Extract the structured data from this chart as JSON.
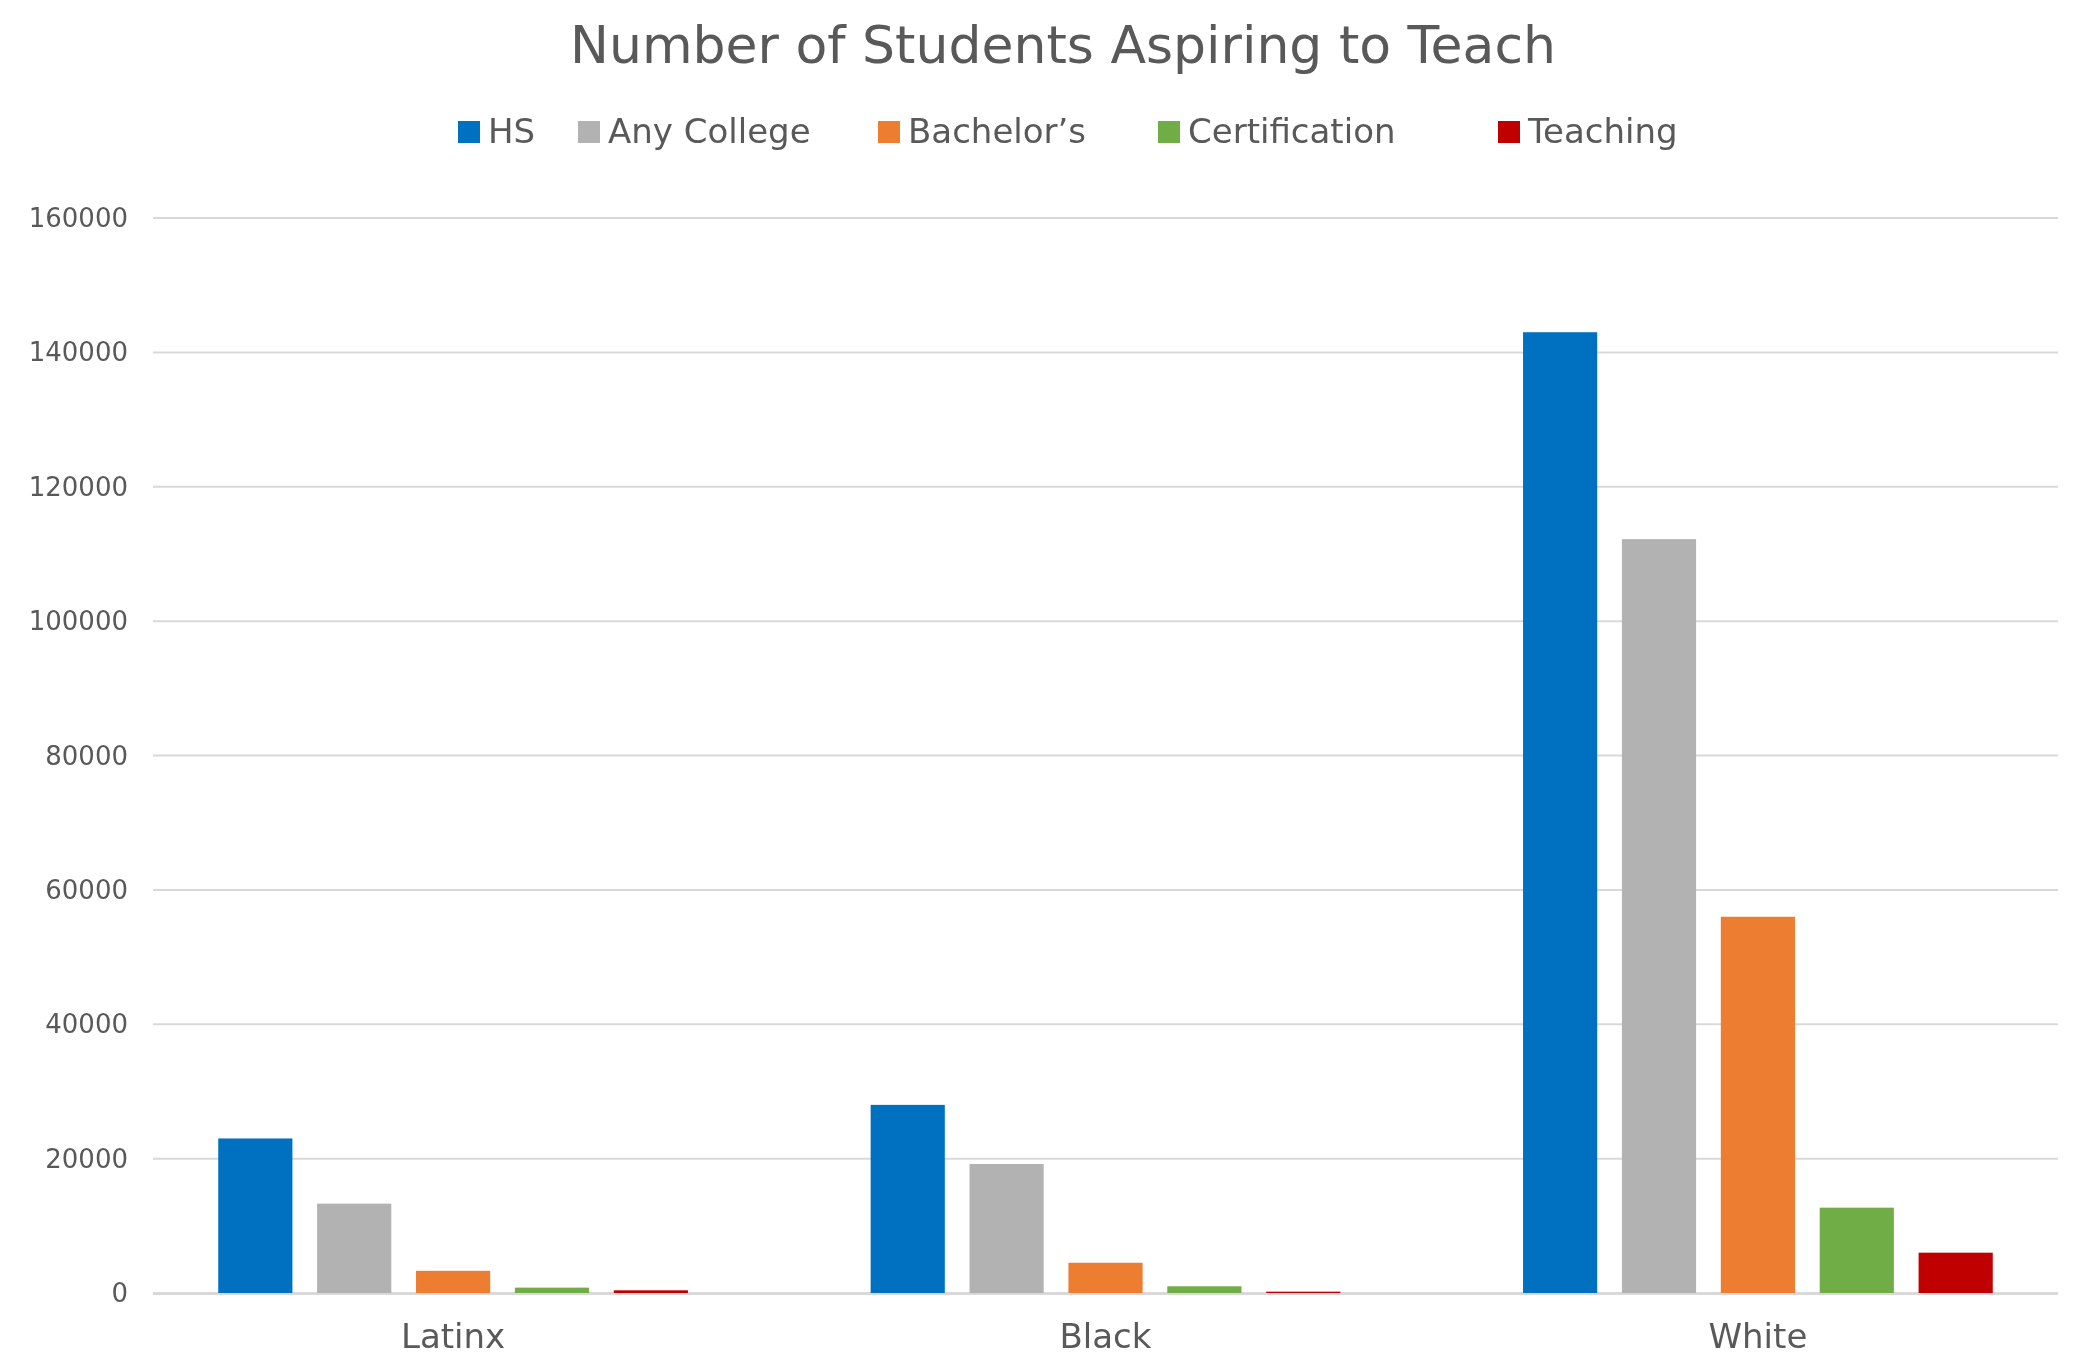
{
  "chart_data": {
    "type": "bar",
    "title": "Number of Students Aspiring to Teach",
    "categories": [
      "Latinx",
      "Black",
      "White"
    ],
    "series": [
      {
        "name": "HS",
        "color": "#0070c0",
        "values": [
          23000,
          28000,
          143000
        ]
      },
      {
        "name": "Any College",
        "color": "#b2b2b2",
        "values": [
          13300,
          19200,
          112200
        ]
      },
      {
        "name": "Bachelor’s",
        "color": "#ed7d31",
        "values": [
          3300,
          4500,
          56000
        ]
      },
      {
        "name": "Certification",
        "color": "#70ad47",
        "values": [
          800,
          1000,
          12700
        ]
      },
      {
        "name": "Teaching",
        "color": "#c00000",
        "values": [
          400,
          200,
          6000
        ]
      }
    ],
    "ylim": [
      0,
      160000
    ],
    "yticks": [
      0,
      20000,
      40000,
      60000,
      80000,
      100000,
      120000,
      140000,
      160000
    ],
    "grid": "y",
    "legend": "top"
  }
}
